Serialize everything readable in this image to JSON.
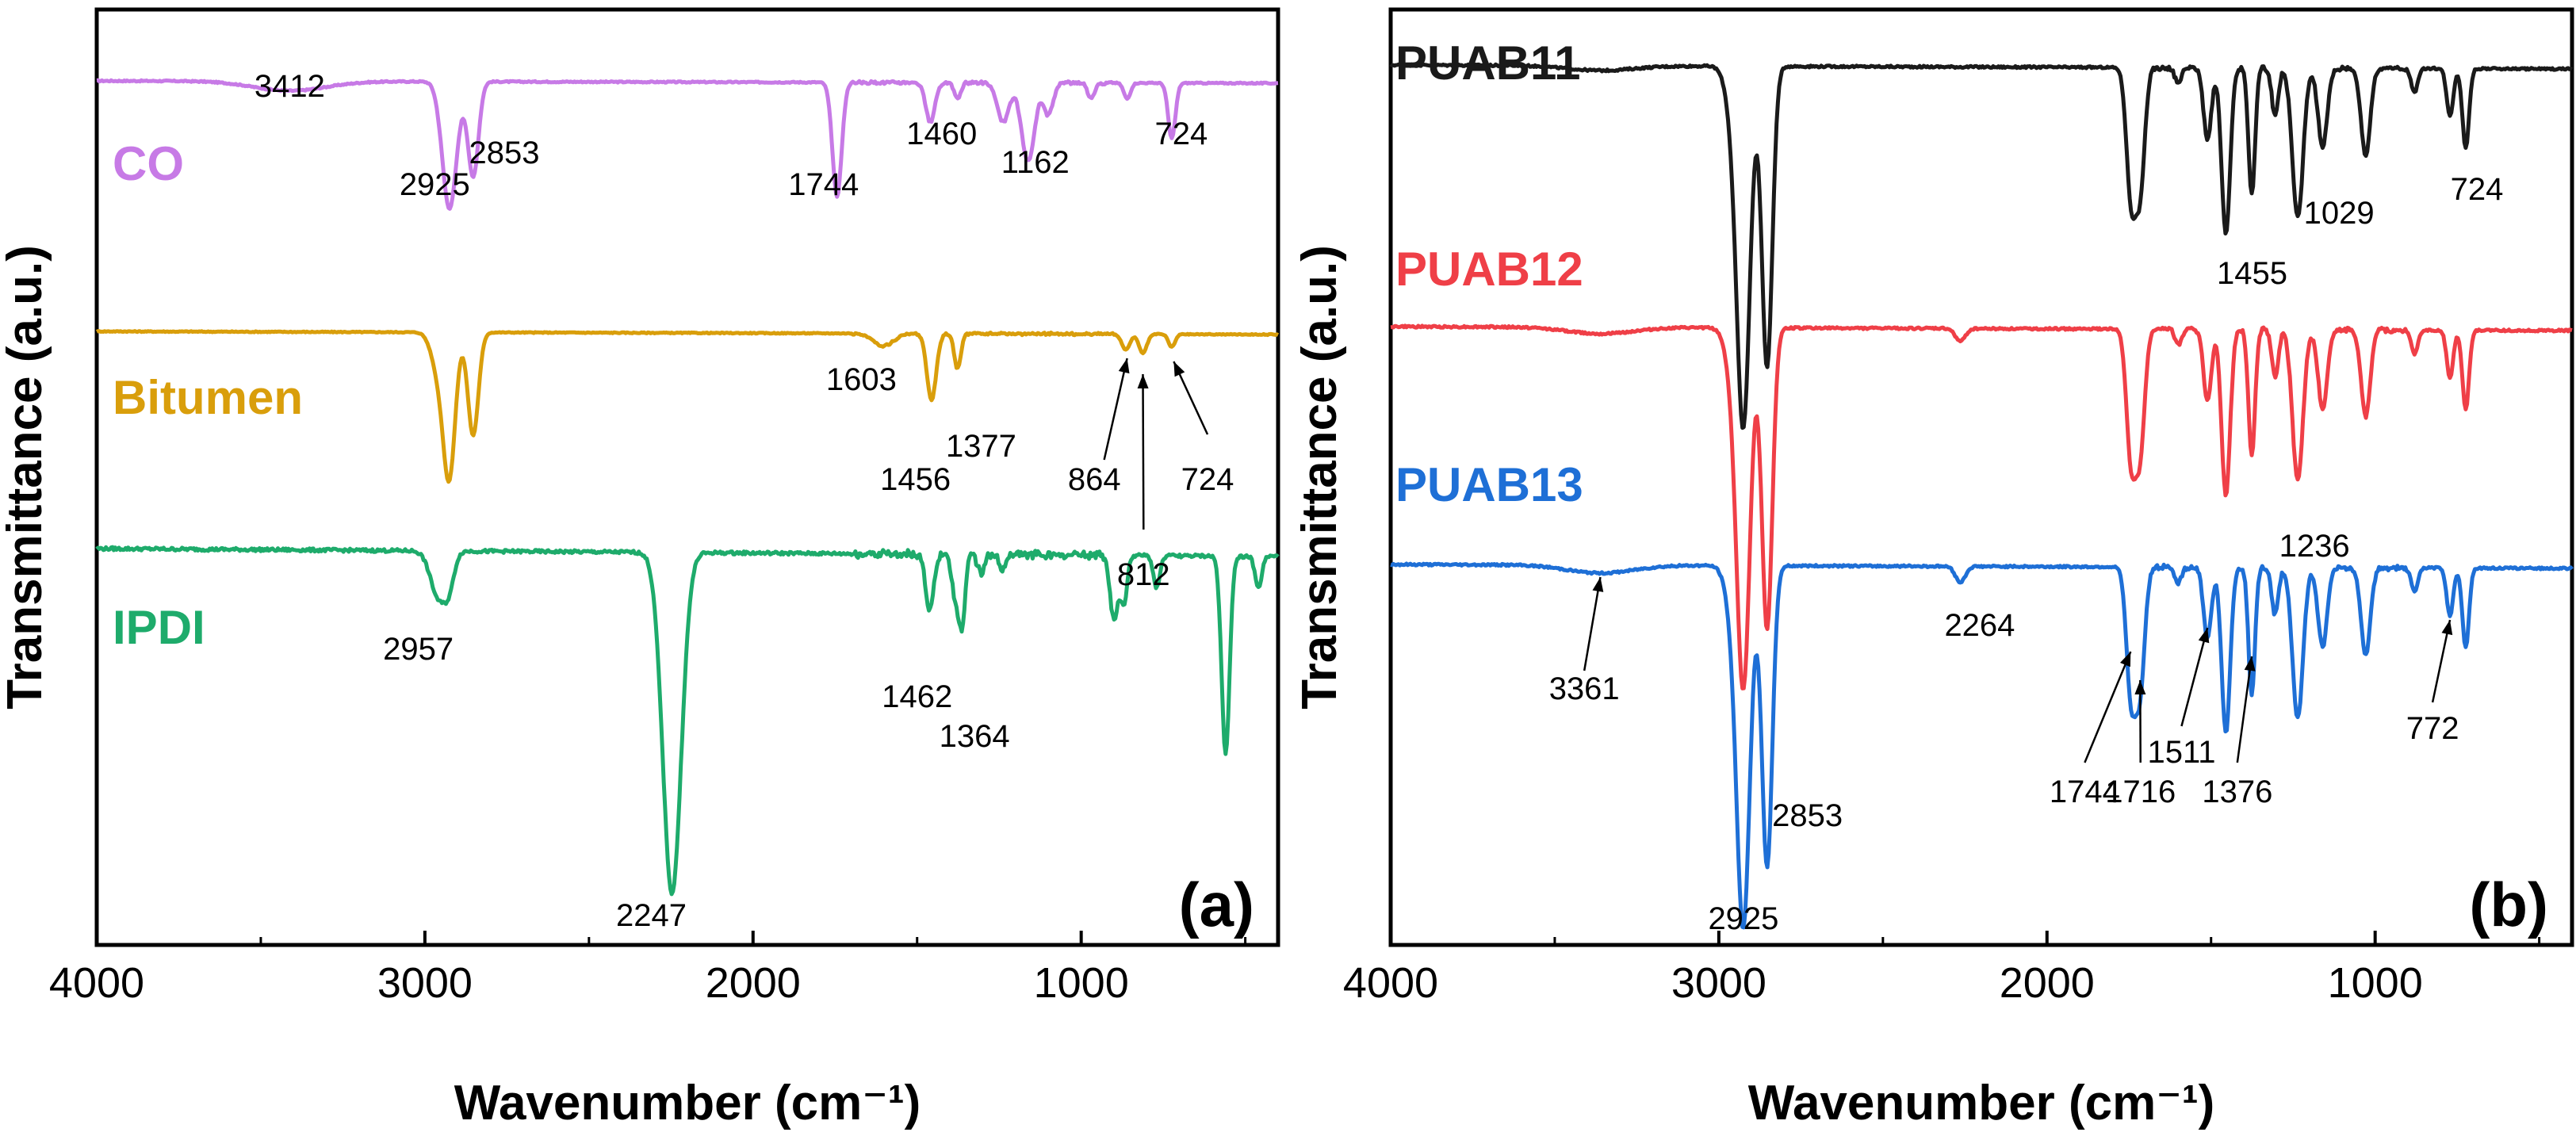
{
  "chart_data": [
    {
      "type": "line",
      "panel_label": "(a)",
      "xlabel": "Wavenumber (cm⁻¹)",
      "ylabel": "Transmittance (a.u.)",
      "xlim": [
        4000,
        400
      ],
      "xticks": [
        4000,
        3000,
        2000,
        1000
      ],
      "grid": false,
      "series": [
        {
          "name": "CO",
          "color": "#c77ae6",
          "offset": 0,
          "baseline": 0.9,
          "noise": 0.004,
          "slope": 0.015,
          "bands": [
            [
              3412,
              0.06,
              110
            ],
            [
              2925,
              0.8,
              22
            ],
            [
              2853,
              0.6,
              16
            ],
            [
              1744,
              0.72,
              14
            ],
            [
              1460,
              0.25,
              14
            ],
            [
              1377,
              0.1,
              10
            ],
            [
              1238,
              0.25,
              18
            ],
            [
              1162,
              0.5,
              20
            ],
            [
              1100,
              0.2,
              14
            ],
            [
              970,
              0.1,
              10
            ],
            [
              860,
              0.1,
              10
            ],
            [
              724,
              0.35,
              11
            ]
          ],
          "labels": [
            {
              "text": "3412",
              "x": 3412,
              "y": 0.8
            },
            {
              "text": "2925",
              "x": 2970,
              "y": 0.18
            },
            {
              "text": "2853",
              "x": 2758,
              "y": 0.38
            },
            {
              "text": "1744",
              "x": 1785,
              "y": 0.18
            },
            {
              "text": "1460",
              "x": 1425,
              "y": 0.5
            },
            {
              "text": "1162",
              "x": 1140,
              "y": 0.32
            },
            {
              "text": "724",
              "x": 695,
              "y": 0.5
            }
          ]
        },
        {
          "name": "Bitumen",
          "color": "#d99e0b",
          "offset": -1.6,
          "baseline": 0.92,
          "noise": 0.003,
          "slope": 0.02,
          "bands": [
            [
              2957,
              0.25,
              22
            ],
            [
              2925,
              0.85,
              18
            ],
            [
              2853,
              0.65,
              16
            ],
            [
              1603,
              0.08,
              30
            ],
            [
              1456,
              0.42,
              14
            ],
            [
              1377,
              0.22,
              10
            ],
            [
              864,
              0.1,
              12
            ],
            [
              812,
              0.12,
              12
            ],
            [
              724,
              0.08,
              10
            ]
          ],
          "labels": [
            {
              "text": "1603",
              "x": 1670,
              "y": 0.55
            },
            {
              "text": "1456",
              "x": 1505,
              "y": -0.08
            },
            {
              "text": "1377",
              "x": 1305,
              "y": 0.13
            },
            {
              "text": "864",
              "x": 960,
              "y": -0.08
            },
            {
              "text": "812",
              "x": 810,
              "y": -0.68
            },
            {
              "text": "724",
              "x": 615,
              "y": -0.08
            }
          ],
          "arrows": [
            {
              "from": [
                930,
                0.11
              ],
              "to": [
                860,
                0.75
              ]
            },
            {
              "from": [
                810,
                -0.33
              ],
              "to": [
                812,
                0.65
              ]
            },
            {
              "from": [
                615,
                0.27
              ],
              "to": [
                718,
                0.73
              ]
            }
          ]
        },
        {
          "name": "IPDI",
          "color": "#1eab6b",
          "offset": -3.0,
          "baseline": 0.95,
          "noise": 0.01,
          "slope": 0.05,
          "bands": [
            [
              2957,
              0.3,
              25
            ],
            [
              2925,
              0.15,
              15
            ],
            [
              2247,
              2.15,
              28
            ],
            [
              1462,
              0.35,
              12
            ],
            [
              1385,
              0.25,
              10
            ],
            [
              1364,
              0.45,
              10
            ],
            [
              1305,
              0.12,
              10
            ],
            [
              1240,
              0.1,
              10
            ],
            [
              900,
              0.4,
              12
            ],
            [
              870,
              0.3,
              10
            ],
            [
              770,
              0.2,
              10
            ],
            [
              560,
              1.25,
              12
            ],
            [
              460,
              0.2,
              10
            ]
          ],
          "labels": [
            {
              "text": "2957",
              "x": 3020,
              "y": 0.25
            },
            {
              "text": "1462",
              "x": 1500,
              "y": -0.05
            },
            {
              "text": "1364",
              "x": 1325,
              "y": -0.3
            },
            {
              "text": "2247",
              "x": 2310,
              "y": -1.43
            }
          ]
        }
      ],
      "legend_labels": [
        "CO",
        "Bitumen",
        "IPDI"
      ]
    },
    {
      "type": "line",
      "panel_label": "(b)",
      "xlabel": "Wavenumber (cm⁻¹)",
      "ylabel": "Transmittance (a.u.)",
      "xlim": [
        4000,
        400
      ],
      "xticks": [
        4000,
        3000,
        2000,
        1000
      ],
      "grid": false,
      "series": [
        {
          "name": "PUAB11",
          "color": "#1a1a1a",
          "offset": 0,
          "baseline": 0.9,
          "noise": 0.006,
          "slope": 0.025,
          "bands": [
            [
              3361,
              0.03,
              100
            ],
            [
              2957,
              0.25,
              22
            ],
            [
              2925,
              2.2,
              20
            ],
            [
              2853,
              1.9,
              16
            ],
            [
              1744,
              0.8,
              14
            ],
            [
              1716,
              0.75,
              14
            ],
            [
              1600,
              0.1,
              10
            ],
            [
              1511,
              0.45,
              12
            ],
            [
              1455,
              1.05,
              13
            ],
            [
              1376,
              0.8,
              10
            ],
            [
              1305,
              0.3,
              10
            ],
            [
              1236,
              0.95,
              16
            ],
            [
              1160,
              0.5,
              14
            ],
            [
              1029,
              0.55,
              14
            ],
            [
              880,
              0.15,
              10
            ],
            [
              772,
              0.3,
              10
            ],
            [
              724,
              0.5,
              10
            ]
          ],
          "labels": [
            {
              "text": "1455",
              "x": 1375,
              "y": -0.48
            },
            {
              "text": "1029",
              "x": 1110,
              "y": -0.1
            },
            {
              "text": "724",
              "x": 690,
              "y": 0.05
            }
          ]
        },
        {
          "name": "PUAB12",
          "color": "#ef3f47",
          "offset": -1.65,
          "baseline": 0.9,
          "noise": 0.006,
          "slope": 0.025,
          "bands": [
            [
              3361,
              0.04,
              100
            ],
            [
              2957,
              0.25,
              22
            ],
            [
              2925,
              2.2,
              20
            ],
            [
              2853,
              1.9,
              16
            ],
            [
              2264,
              0.08,
              15
            ],
            [
              1744,
              0.8,
              14
            ],
            [
              1716,
              0.75,
              14
            ],
            [
              1600,
              0.1,
              10
            ],
            [
              1511,
              0.45,
              12
            ],
            [
              1455,
              1.05,
              13
            ],
            [
              1376,
              0.8,
              10
            ],
            [
              1305,
              0.3,
              10
            ],
            [
              1236,
              0.95,
              16
            ],
            [
              1160,
              0.5,
              14
            ],
            [
              1029,
              0.55,
              14
            ],
            [
              880,
              0.15,
              10
            ],
            [
              772,
              0.3,
              10
            ],
            [
              724,
              0.5,
              10
            ]
          ],
          "labels": [
            {
              "text": "1236",
              "x": 1185,
              "y": -0.55
            }
          ]
        },
        {
          "name": "PUAB13",
          "color": "#1e6fd6",
          "offset": -3.15,
          "baseline": 0.9,
          "noise": 0.006,
          "slope": 0.025,
          "bands": [
            [
              3361,
              0.05,
              100
            ],
            [
              2957,
              0.25,
              22
            ],
            [
              2925,
              2.2,
              20
            ],
            [
              2853,
              1.9,
              16
            ],
            [
              2264,
              0.1,
              15
            ],
            [
              1744,
              0.8,
              14
            ],
            [
              1716,
              0.75,
              14
            ],
            [
              1600,
              0.1,
              10
            ],
            [
              1511,
              0.45,
              12
            ],
            [
              1455,
              1.05,
              13
            ],
            [
              1376,
              0.8,
              10
            ],
            [
              1305,
              0.3,
              10
            ],
            [
              1236,
              0.95,
              16
            ],
            [
              1160,
              0.5,
              14
            ],
            [
              1029,
              0.55,
              14
            ],
            [
              880,
              0.15,
              10
            ],
            [
              772,
              0.3,
              10
            ],
            [
              724,
              0.5,
              10
            ]
          ],
          "labels": [
            {
              "text": "3361",
              "x": 3410,
              "y": 0.05
            },
            {
              "text": "2264",
              "x": 2205,
              "y": 0.45
            },
            {
              "text": "2853",
              "x": 2730,
              "y": -0.75
            },
            {
              "text": "2925",
              "x": 2925,
              "y": -1.4
            },
            {
              "text": "1744",
              "x": 1885,
              "y": -0.6
            },
            {
              "text": "1716",
              "x": 1715,
              "y": -0.6
            },
            {
              "text": "1511",
              "x": 1590,
              "y": -0.35
            },
            {
              "text": "1376",
              "x": 1420,
              "y": -0.6
            },
            {
              "text": "772",
              "x": 825,
              "y": -0.2
            }
          ],
          "arrows": [
            {
              "from": [
                3410,
                0.23
              ],
              "to": [
                3361,
                0.82
              ]
            },
            {
              "from": [
                1885,
                -0.35
              ],
              "to": [
                1745,
                0.35
              ]
            },
            {
              "from": [
                1715,
                -0.35
              ],
              "to": [
                1716,
                0.17
              ]
            },
            {
              "from": [
                1590,
                -0.12
              ],
              "to": [
                1511,
                0.5
              ]
            },
            {
              "from": [
                1420,
                -0.35
              ],
              "to": [
                1376,
                0.32
              ]
            },
            {
              "from": [
                825,
                0.03
              ],
              "to": [
                772,
                0.55
              ]
            }
          ]
        }
      ],
      "legend_labels": [
        "PUAB11",
        "PUAB12",
        "PUAB13"
      ]
    }
  ]
}
